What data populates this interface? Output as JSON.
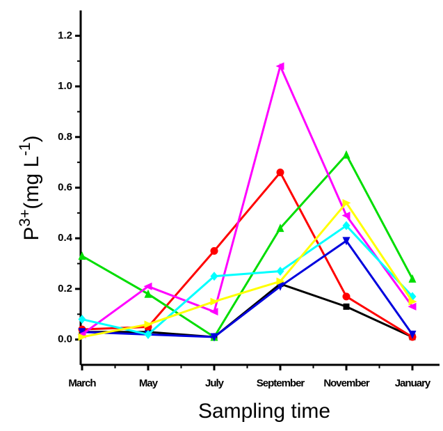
{
  "chart_data": {
    "type": "line",
    "x_label": "Sampling time",
    "y_label_parts": [
      "P",
      "3+",
      "(mg L",
      "-1",
      ")"
    ],
    "categories": [
      "March",
      "May",
      "July",
      "September",
      "November",
      "January"
    ],
    "ylim": [
      -0.1,
      1.3
    ],
    "yticks": [
      {
        "value": 0,
        "label": "0.0"
      },
      0.2,
      0.4,
      0.6,
      0.8,
      {
        "value": 1,
        "label": "1.0"
      },
      1.2
    ],
    "series": [
      {
        "color": "#000000",
        "marker": "square",
        "values": [
          0.03,
          0.03,
          0.01,
          0.22,
          0.13,
          0.01
        ]
      },
      {
        "color": "#ff0000",
        "marker": "circle",
        "values": [
          0.04,
          0.05,
          0.35,
          0.66,
          0.17,
          0.01
        ]
      },
      {
        "color": "#00dd00",
        "marker": "triangle-up",
        "values": [
          0.33,
          0.18,
          0.01,
          0.44,
          0.73,
          0.24
        ]
      },
      {
        "color": "#0000dd",
        "marker": "triangle-down",
        "values": [
          0.03,
          0.02,
          0.01,
          0.21,
          0.39,
          0.02
        ]
      },
      {
        "color": "#ff00ff",
        "marker": "triangle-left",
        "values": [
          0.02,
          0.21,
          0.11,
          1.08,
          0.49,
          0.13
        ]
      },
      {
        "color": "#00ffff",
        "marker": "diamond",
        "values": [
          0.08,
          0.02,
          0.25,
          0.27,
          0.45,
          0.17
        ]
      },
      {
        "color": "#ffff00",
        "marker": "triangle-right",
        "values": [
          0.01,
          0.06,
          0.15,
          0.23,
          0.54,
          0.15
        ]
      }
    ]
  }
}
